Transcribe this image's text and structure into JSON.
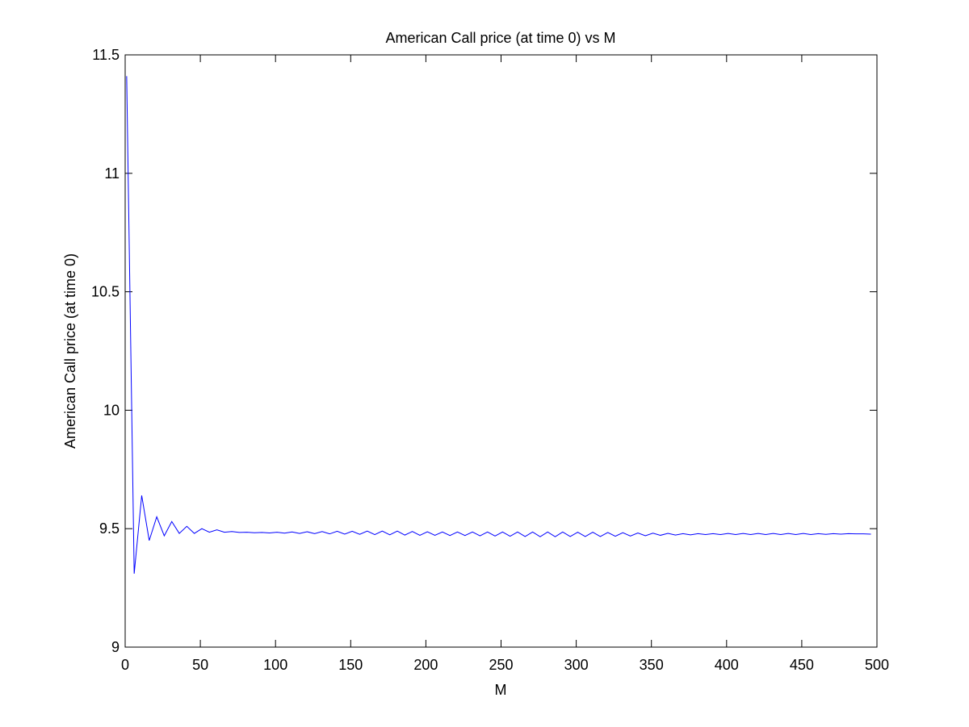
{
  "chart_data": {
    "type": "line",
    "title": "American Call price (at time 0) vs M",
    "xlabel": "M",
    "ylabel": "American Call price (at time 0)",
    "xlim": [
      0,
      500
    ],
    "ylim": [
      9,
      11.5
    ],
    "xticks": [
      "0",
      "50",
      "100",
      "150",
      "200",
      "250",
      "300",
      "350",
      "400",
      "450",
      "500"
    ],
    "yticks": [
      "9",
      "9.5",
      "10",
      "10.5",
      "11",
      "11.5"
    ],
    "grid": false,
    "line_color": "#0000ff",
    "series": [
      {
        "x": [
          1,
          6,
          11,
          16,
          21,
          26,
          31,
          36,
          41,
          46,
          51,
          56,
          61,
          66,
          71,
          76,
          81,
          86,
          91,
          96,
          101,
          106,
          111,
          116,
          121,
          126,
          131,
          136,
          141,
          146,
          151,
          156,
          161,
          166,
          171,
          176,
          181,
          186,
          191,
          196,
          201,
          206,
          211,
          216,
          221,
          226,
          231,
          236,
          241,
          246,
          251,
          256,
          261,
          266,
          271,
          276,
          281,
          286,
          291,
          296,
          301,
          306,
          311,
          316,
          321,
          326,
          331,
          336,
          341,
          346,
          351,
          356,
          361,
          366,
          371,
          376,
          381,
          386,
          391,
          396,
          401,
          406,
          411,
          416,
          421,
          426,
          431,
          436,
          441,
          446,
          451,
          456,
          461,
          466,
          471,
          476,
          481,
          486,
          491,
          496
        ],
        "y": [
          11.41,
          9.31,
          9.64,
          9.45,
          9.55,
          9.47,
          9.53,
          9.48,
          9.51,
          9.48,
          9.5,
          9.485,
          9.495,
          9.485,
          9.488,
          9.484,
          9.485,
          9.483,
          9.484,
          9.482,
          9.485,
          9.481,
          9.486,
          9.48,
          9.487,
          9.479,
          9.488,
          9.478,
          9.489,
          9.477,
          9.489,
          9.476,
          9.49,
          9.475,
          9.49,
          9.474,
          9.49,
          9.473,
          9.488,
          9.472,
          9.487,
          9.472,
          9.486,
          9.471,
          9.486,
          9.471,
          9.486,
          9.47,
          9.486,
          9.469,
          9.486,
          9.468,
          9.486,
          9.467,
          9.486,
          9.466,
          9.486,
          9.466,
          9.486,
          9.467,
          9.485,
          9.467,
          9.485,
          9.467,
          9.484,
          9.468,
          9.483,
          9.469,
          9.482,
          9.47,
          9.481,
          9.472,
          9.48,
          9.473,
          9.479,
          9.474,
          9.479,
          9.475,
          9.479,
          9.475,
          9.48,
          9.475,
          9.48,
          9.475,
          9.48,
          9.475,
          9.48,
          9.475,
          9.48,
          9.475,
          9.48,
          9.475,
          9.479,
          9.476,
          9.479,
          9.477,
          9.479,
          9.478,
          9.478,
          9.477
        ]
      }
    ]
  }
}
